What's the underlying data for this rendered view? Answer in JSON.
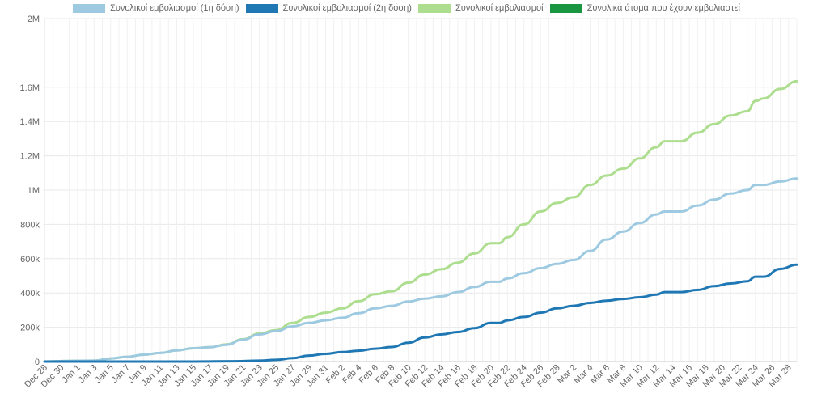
{
  "chart_data": {
    "type": "line",
    "title": "",
    "xlabel": "",
    "ylabel": "",
    "ylim": [
      0,
      2000000
    ],
    "y_tick_labels": [
      "0",
      "200k",
      "400k",
      "600k",
      "800k",
      "1M",
      "1.2M",
      "1.4M",
      "1.6M",
      "2M"
    ],
    "y_tick_values": [
      0,
      200000,
      400000,
      600000,
      800000,
      1000000,
      1200000,
      1400000,
      1600000,
      2000000
    ],
    "x_start_date": "2020-12-28",
    "x_end_date": "2021-03-29",
    "x_tick_labels": [
      "Dec 28",
      "Dec 30",
      "Jan 1",
      "Jan 3",
      "Jan 5",
      "Jan 7",
      "Jan 9",
      "Jan 11",
      "Jan 13",
      "Jan 15",
      "Jan 17",
      "Jan 19",
      "Jan 21",
      "Jan 23",
      "Jan 25",
      "Jan 27",
      "Jan 29",
      "Jan 31",
      "Feb 2",
      "Feb 4",
      "Feb 6",
      "Feb 8",
      "Feb 10",
      "Feb 12",
      "Feb 14",
      "Feb 16",
      "Feb 18",
      "Feb 20",
      "Feb 22",
      "Feb 24",
      "Feb 26",
      "Feb 28",
      "Mar 2",
      "Mar 4",
      "Mar 6",
      "Mar 8",
      "Mar 10",
      "Mar 12",
      "Mar 14",
      "Mar 16",
      "Mar 18",
      "Mar 20",
      "Mar 22",
      "Mar 24",
      "Mar 26",
      "Mar 28"
    ],
    "grid": true,
    "legend_position": "top",
    "series": [
      {
        "name": "Συνολικοί εμβολιασμοί (1η δόση)",
        "color": "#9ecae1",
        "x": [
          "2020-12-28",
          "2020-12-31",
          "2021-01-03",
          "2021-01-05",
          "2021-01-07",
          "2021-01-09",
          "2021-01-11",
          "2021-01-13",
          "2021-01-15",
          "2021-01-17",
          "2021-01-19",
          "2021-01-21",
          "2021-01-23",
          "2021-01-25",
          "2021-01-27",
          "2021-01-29",
          "2021-01-31",
          "2021-02-02",
          "2021-02-04",
          "2021-02-06",
          "2021-02-08",
          "2021-02-10",
          "2021-02-12",
          "2021-02-14",
          "2021-02-16",
          "2021-02-18",
          "2021-02-20",
          "2021-02-21",
          "2021-02-22",
          "2021-02-24",
          "2021-02-26",
          "2021-02-28",
          "2021-03-02",
          "2021-03-04",
          "2021-03-06",
          "2021-03-08",
          "2021-03-10",
          "2021-03-12",
          "2021-03-13",
          "2021-03-15",
          "2021-03-17",
          "2021-03-19",
          "2021-03-21",
          "2021-03-23",
          "2021-03-24",
          "2021-03-25",
          "2021-03-27",
          "2021-03-29"
        ],
        "values": [
          0,
          4000,
          5000,
          18000,
          28000,
          40000,
          50000,
          65000,
          78000,
          84000,
          98000,
          128000,
          158000,
          178000,
          205000,
          225000,
          240000,
          255000,
          282000,
          310000,
          325000,
          350000,
          367000,
          380000,
          405000,
          435000,
          465000,
          465000,
          485000,
          515000,
          545000,
          570000,
          592000,
          645000,
          712000,
          758000,
          808000,
          858000,
          875000,
          875000,
          910000,
          945000,
          980000,
          1000000,
          1030000,
          1030000,
          1050000,
          1068000
        ]
      },
      {
        "name": "Συνολικοί εμβολιασμοί (2η δόση)",
        "color": "#1f78b4",
        "x": [
          "2020-12-28",
          "2021-01-15",
          "2021-01-20",
          "2021-01-23",
          "2021-01-25",
          "2021-01-27",
          "2021-01-29",
          "2021-01-31",
          "2021-02-02",
          "2021-02-04",
          "2021-02-06",
          "2021-02-08",
          "2021-02-10",
          "2021-02-12",
          "2021-02-14",
          "2021-02-16",
          "2021-02-18",
          "2021-02-20",
          "2021-02-21",
          "2021-02-22",
          "2021-02-24",
          "2021-02-26",
          "2021-02-28",
          "2021-03-02",
          "2021-03-04",
          "2021-03-06",
          "2021-03-08",
          "2021-03-10",
          "2021-03-12",
          "2021-03-13",
          "2021-03-15",
          "2021-03-17",
          "2021-03-19",
          "2021-03-21",
          "2021-03-23",
          "2021-03-24",
          "2021-03-25",
          "2021-03-27",
          "2021-03-29"
        ],
        "values": [
          0,
          0,
          2000,
          5000,
          10000,
          20000,
          35000,
          45000,
          55000,
          63000,
          75000,
          85000,
          110000,
          140000,
          158000,
          172000,
          195000,
          225000,
          225000,
          240000,
          260000,
          285000,
          310000,
          325000,
          342000,
          355000,
          365000,
          375000,
          390000,
          405000,
          405000,
          418000,
          440000,
          455000,
          468000,
          495000,
          495000,
          540000,
          565000
        ]
      },
      {
        "name": "Συνολικοί εμβολιασμοί",
        "color": "#addd8e",
        "x": [
          "2020-12-28",
          "2020-12-31",
          "2021-01-03",
          "2021-01-05",
          "2021-01-07",
          "2021-01-09",
          "2021-01-11",
          "2021-01-13",
          "2021-01-15",
          "2021-01-17",
          "2021-01-19",
          "2021-01-21",
          "2021-01-23",
          "2021-01-25",
          "2021-01-27",
          "2021-01-29",
          "2021-01-31",
          "2021-02-02",
          "2021-02-04",
          "2021-02-06",
          "2021-02-08",
          "2021-02-10",
          "2021-02-12",
          "2021-02-14",
          "2021-02-16",
          "2021-02-18",
          "2021-02-20",
          "2021-02-21",
          "2021-02-22",
          "2021-02-24",
          "2021-02-26",
          "2021-02-28",
          "2021-03-02",
          "2021-03-04",
          "2021-03-06",
          "2021-03-08",
          "2021-03-10",
          "2021-03-12",
          "2021-03-13",
          "2021-03-15",
          "2021-03-17",
          "2021-03-19",
          "2021-03-21",
          "2021-03-23",
          "2021-03-24",
          "2021-03-25",
          "2021-03-27",
          "2021-03-29"
        ],
        "values": [
          0,
          4000,
          5000,
          18000,
          28000,
          40000,
          50000,
          65000,
          78000,
          84000,
          100000,
          130000,
          163000,
          183000,
          225000,
          260000,
          285000,
          310000,
          352000,
          393000,
          410000,
          460000,
          507000,
          538000,
          577000,
          630000,
          690000,
          690000,
          725000,
          800000,
          875000,
          925000,
          958000,
          1030000,
          1085000,
          1125000,
          1185000,
          1250000,
          1285000,
          1285000,
          1335000,
          1385000,
          1435000,
          1460000,
          1520000,
          1535000,
          1590000,
          1635000
        ]
      },
      {
        "name": "Συνολικά άτομα που έχουν εμβολιαστεί",
        "color": "#1a9641",
        "x": [],
        "values": []
      }
    ]
  }
}
